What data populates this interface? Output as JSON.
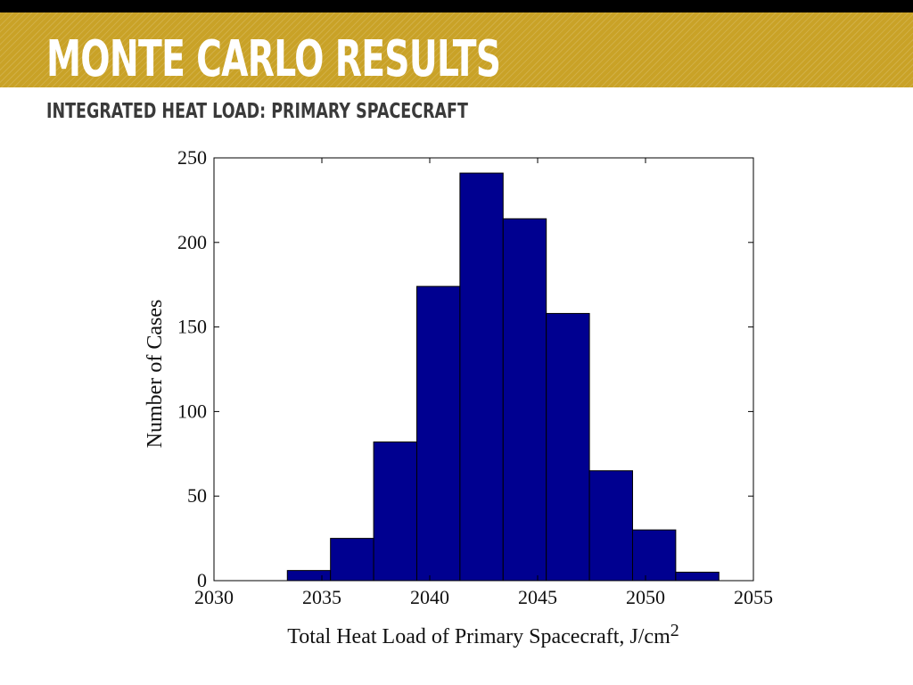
{
  "slide": {
    "title": "MONTE CARLO RESULTS",
    "subtitle": "INTEGRATED HEAT LOAD: PRIMARY SPACECRAFT",
    "banner_color": "#c9a227"
  },
  "chart_data": {
    "type": "bar",
    "title": "",
    "xlabel": "Total Heat Load of Primary Spacecraft, J/cm",
    "xlabel_superscript": "2",
    "ylabel": "Number of Cases",
    "xlim": [
      2030,
      2055
    ],
    "ylim": [
      0,
      250
    ],
    "xticks": [
      2030,
      2035,
      2040,
      2045,
      2050,
      2055
    ],
    "yticks": [
      0,
      50,
      100,
      150,
      200,
      250
    ],
    "bin_edges": [
      2033.4,
      2035.4,
      2037.4,
      2039.4,
      2041.4,
      2043.4,
      2045.4,
      2047.4,
      2049.4,
      2051.4,
      2053.4
    ],
    "values": [
      6,
      25,
      82,
      174,
      241,
      214,
      158,
      65,
      30,
      5
    ],
    "bar_color": "#000090",
    "grid": false,
    "legend": "none"
  }
}
